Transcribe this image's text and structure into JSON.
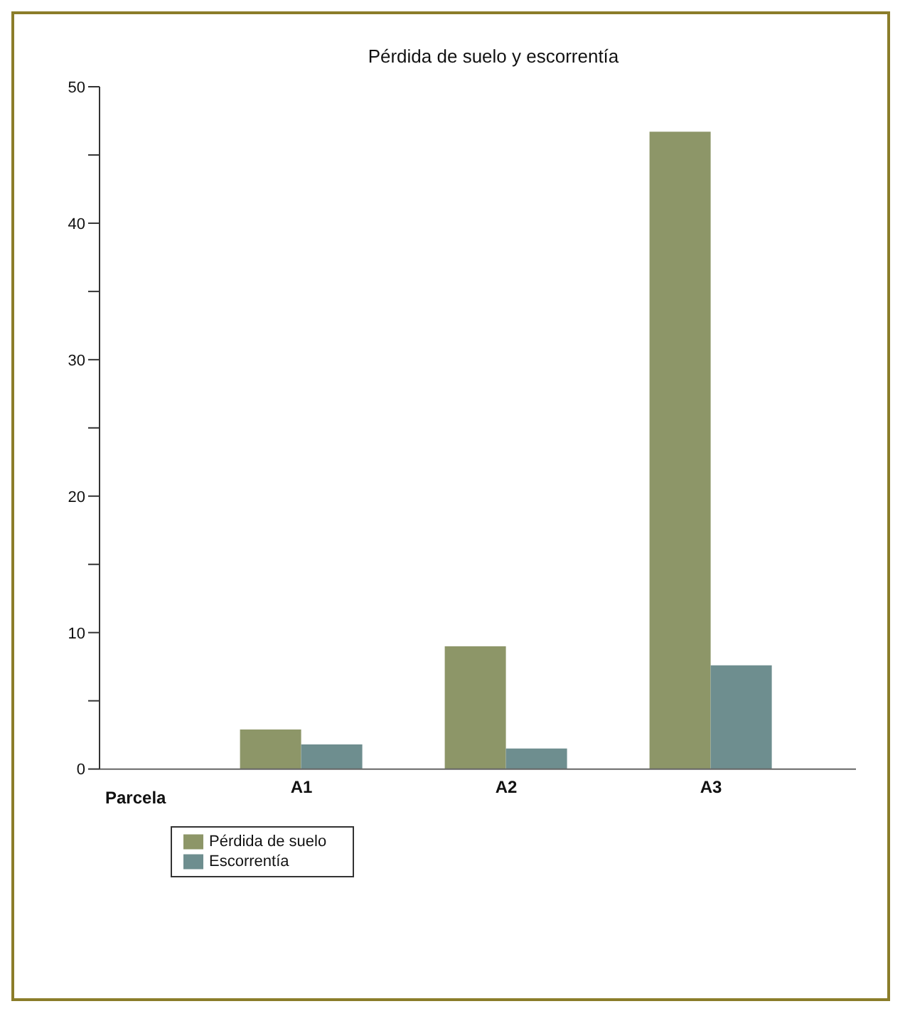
{
  "chart_data": {
    "type": "bar",
    "title": "Pérdida de suelo y escorrentía",
    "xlabel": "Parcela",
    "categories": [
      "A1",
      "A2",
      "A3"
    ],
    "series": [
      {
        "name": "Pérdida de suelo",
        "color": "#8d9668",
        "values": [
          2.9,
          9.0,
          46.7
        ]
      },
      {
        "name": "Escorrentía",
        "color": "#6e8e8f",
        "values": [
          1.8,
          1.5,
          7.6
        ]
      }
    ],
    "ylim": [
      0,
      50
    ],
    "yticks": [
      0,
      {
        "value": 5,
        "label": null
      },
      10,
      {
        "value": 15,
        "label": null
      },
      20,
      {
        "value": 25,
        "label": null
      },
      30,
      {
        "value": 35,
        "label": null
      },
      40,
      {
        "value": 45,
        "label": null
      },
      50
    ],
    "grid": false,
    "legend": "bottom left"
  }
}
